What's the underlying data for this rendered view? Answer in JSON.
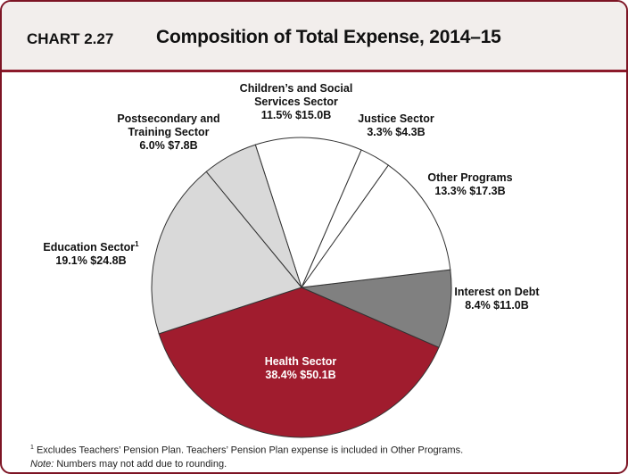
{
  "header": {
    "chart_number": "CHART 2.27",
    "title": "Composition of Total Expense, 2014–15"
  },
  "chart_data": {
    "type": "pie",
    "title": "Composition of Total Expense, 2014–15",
    "slices": [
      {
        "label_lines": [
          "Health Sector"
        ],
        "percent_text": "38.4%",
        "amount_text": "$50.1B",
        "value": 50.1,
        "percent": 38.4,
        "color": "#a01c2e",
        "text_color": "#ffffff"
      },
      {
        "label_lines": [
          "Interest on Debt"
        ],
        "percent_text": "8.4%",
        "amount_text": "$11.0B",
        "value": 11.0,
        "percent": 8.4,
        "color": "#808080",
        "text_color": "#111111"
      },
      {
        "label_lines": [
          "Other Programs"
        ],
        "percent_text": "13.3%",
        "amount_text": "$17.3B",
        "value": 17.3,
        "percent": 13.3,
        "color": "#ffffff",
        "text_color": "#111111"
      },
      {
        "label_lines": [
          "Justice Sector"
        ],
        "percent_text": "3.3%",
        "amount_text": "$4.3B",
        "value": 4.3,
        "percent": 3.3,
        "color": "#ffffff",
        "text_color": "#111111"
      },
      {
        "label_lines": [
          "Children’s and Social",
          "Services Sector"
        ],
        "percent_text": "11.5%",
        "amount_text": "$15.0B",
        "value": 15.0,
        "percent": 11.5,
        "color": "#ffffff",
        "text_color": "#111111"
      },
      {
        "label_lines": [
          "Postsecondary and",
          "Training Sector"
        ],
        "percent_text": "6.0%",
        "amount_text": "$7.8B",
        "value": 7.8,
        "percent": 6.0,
        "color": "#d9d9d9",
        "text_color": "#111111"
      },
      {
        "label_lines": [
          "Education Sector"
        ],
        "label_sup": "1",
        "percent_text": "19.1%",
        "amount_text": "$24.8B",
        "value": 24.8,
        "percent": 19.1,
        "color": "#d9d9d9",
        "text_color": "#111111"
      }
    ]
  },
  "footnotes": {
    "note1_marker": "1",
    "note1_text": " Excludes Teachers’ Pension Plan. Teachers’ Pension Plan expense is included in Other Programs.",
    "note_label": "Note:",
    "note_text": " Numbers may not add due to rounding."
  }
}
